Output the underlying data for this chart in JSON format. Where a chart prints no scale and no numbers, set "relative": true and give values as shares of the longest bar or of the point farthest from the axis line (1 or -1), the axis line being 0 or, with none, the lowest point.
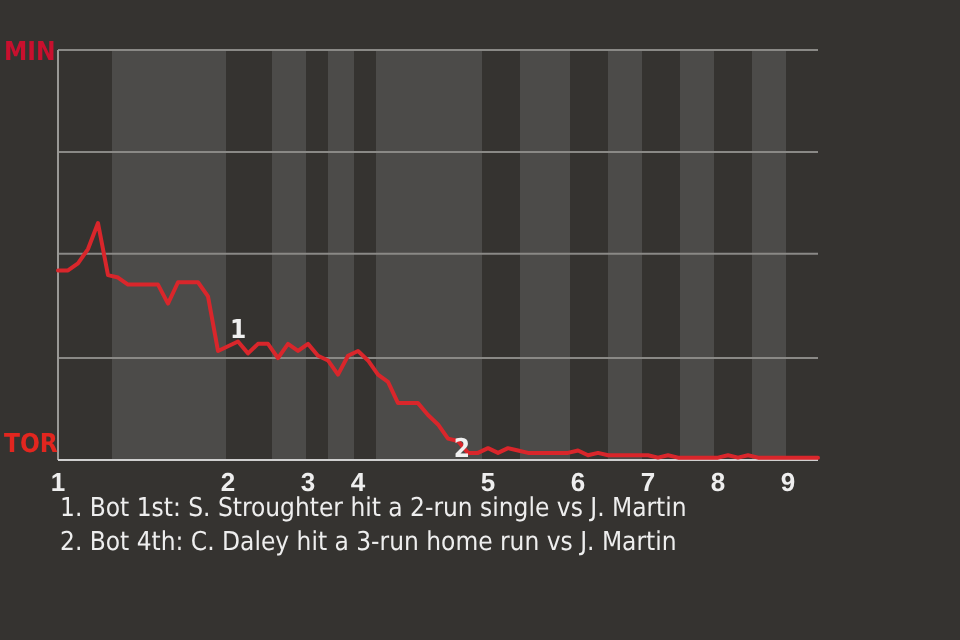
{
  "chart_data": {
    "type": "line",
    "relative": true,
    "categories": [
      "1",
      null,
      null,
      null,
      null,
      null,
      null,
      null,
      null,
      null,
      null,
      null,
      null,
      null,
      null,
      null,
      null,
      "2",
      null,
      null,
      null,
      null,
      null,
      null,
      null,
      "3",
      null,
      null,
      null,
      null,
      "4",
      null,
      null,
      null,
      null,
      null,
      null,
      null,
      null,
      null,
      null,
      null,
      null,
      "5",
      null,
      null,
      null,
      null,
      null,
      null,
      null,
      null,
      "6",
      null,
      null,
      null,
      null,
      null,
      null,
      "7",
      null,
      null,
      null,
      null,
      null,
      null,
      "8",
      null,
      null,
      null,
      null,
      null,
      null,
      "9",
      null,
      null,
      null
    ],
    "series": [
      {
        "color": "#d9262b",
        "values": [
          0.8,
          0.8,
          0.83,
          0.89,
          1,
          0.78,
          0.77,
          0.74,
          0.74,
          0.74,
          0.74,
          0.66,
          0.75,
          0.75,
          0.75,
          0.69,
          0.46,
          0.48,
          0.5,
          0.45,
          0.49,
          0.49,
          0.43,
          0.49,
          0.46,
          0.49,
          0.44,
          0.42,
          0.36,
          0.44,
          0.46,
          0.42,
          0.36,
          0.33,
          0.24,
          0.24,
          0.24,
          0.19,
          0.15,
          0.09,
          0.08,
          0.03,
          0.03,
          0.05,
          0.03,
          0.05,
          0.04,
          0.03,
          0.03,
          0.03,
          0.03,
          0.03,
          0.04,
          0.02,
          0.03,
          0.02,
          0.02,
          0.02,
          0.02,
          0.02,
          0.01,
          0.02,
          0.01,
          0.01,
          0.01,
          0.01,
          0.01,
          0.02,
          0.01,
          0.02,
          0.01,
          0.01,
          0.01,
          0.01,
          0.01,
          0.01,
          0.01
        ]
      }
    ],
    "ref_lines": [
      {
        "axis": "y",
        "value": 0.43,
        "color": "#8a8986"
      },
      {
        "axis": "y",
        "value": 0.87,
        "color": "#8a8986"
      },
      {
        "axis": "y",
        "value": 1.3,
        "color": "#8a8986"
      },
      {
        "axis": "y",
        "value": 1.73,
        "color": "#8a8986"
      }
    ],
    "annotations": [
      "MIN",
      "TOR",
      {
        "text": "1",
        "x": "2",
        "y": 0.48
      },
      {
        "text": "2",
        "x": "5",
        "y": 0.03
      },
      "1. Bot 1st: S. Stroughter hit a 2-run single vs J. Martin",
      "2. Bot 4th: C. Daley hit a 3-run home run vs J. Martin"
    ]
  }
}
